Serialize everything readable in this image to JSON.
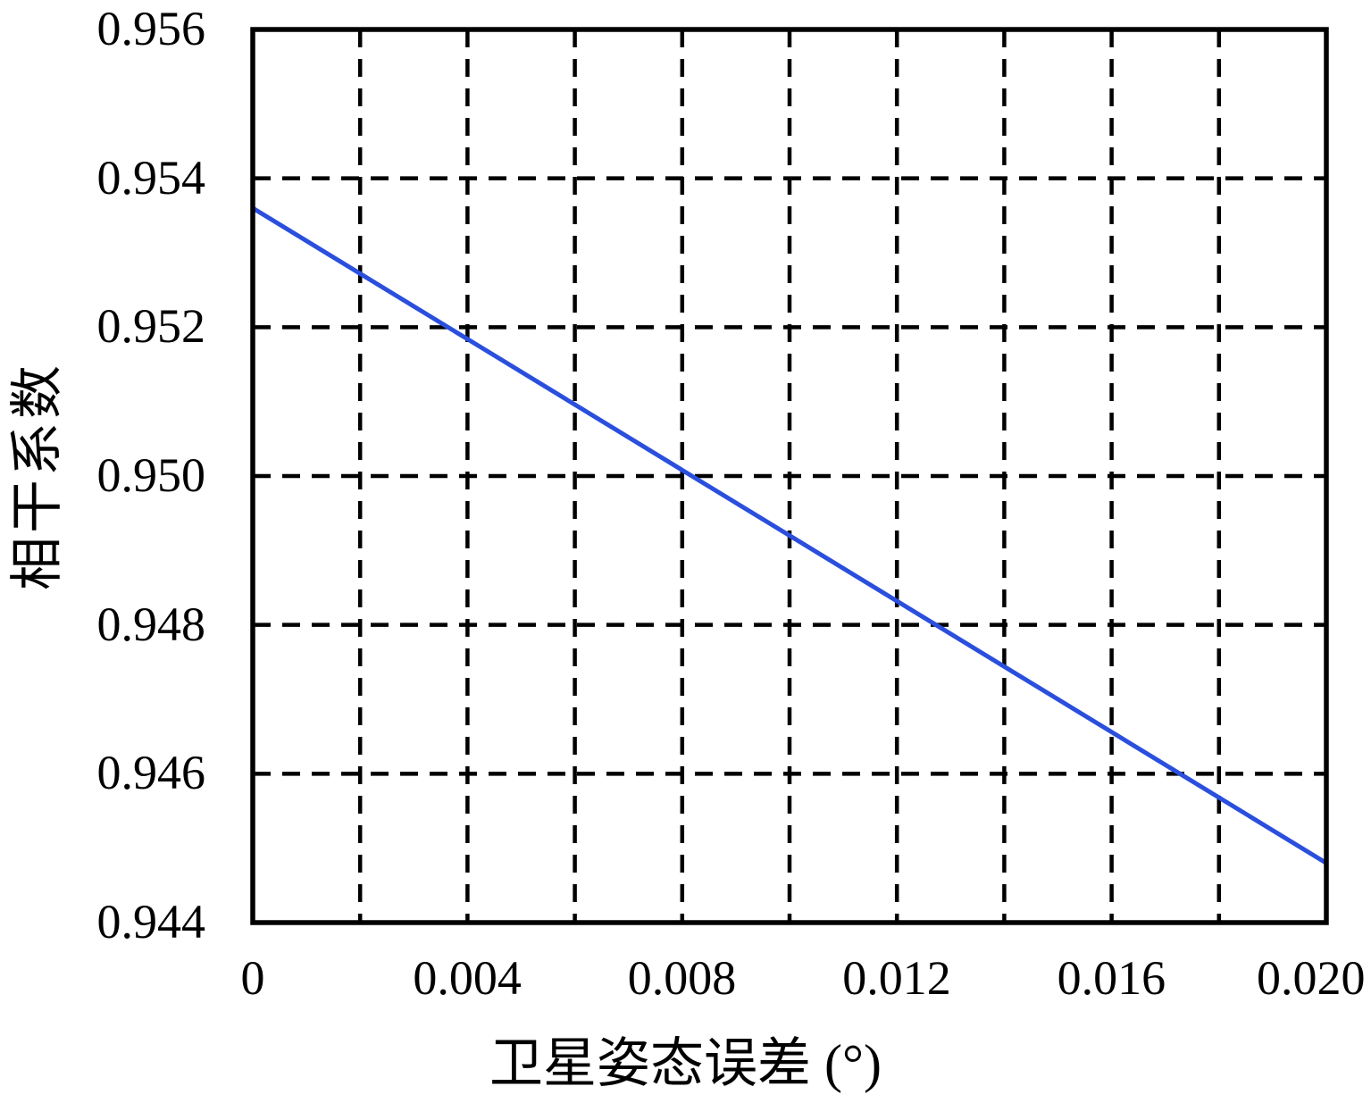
{
  "figure": {
    "background_color": "#ffffff",
    "text_color": "#000000"
  },
  "chart_data": {
    "type": "line",
    "title": "",
    "xlabel": "卫星姿态误差 (°)",
    "ylabel": "相干系数",
    "xlim": [
      0,
      0.02
    ],
    "ylim": [
      0.944,
      0.956
    ],
    "grid": "dashed",
    "grid_color": "#000000",
    "axis_color": "#000000",
    "legend": "none",
    "x_tick_values": [
      0,
      0.004,
      0.008,
      0.012,
      0.016,
      0.02
    ],
    "x_tick_labels": [
      "0",
      "0.004",
      "0.008",
      "0.012",
      "0.016",
      "0.020"
    ],
    "y_tick_values": [
      0.944,
      0.946,
      0.948,
      0.95,
      0.952,
      0.954,
      0.956
    ],
    "y_tick_labels": [
      "0.944",
      "0.946",
      "0.948",
      "0.950",
      "0.952",
      "0.954",
      "0.956"
    ],
    "x_gridline_values": [
      0.002,
      0.004,
      0.006,
      0.008,
      0.01,
      0.012,
      0.014,
      0.016,
      0.018
    ],
    "y_gridline_values": [
      0.946,
      0.948,
      0.95,
      0.952,
      0.954
    ],
    "series": [
      {
        "name": "coherence-coefficient",
        "color": "#2b4fdd",
        "x": [
          0,
          0.002,
          0.004,
          0.006,
          0.008,
          0.01,
          0.012,
          0.014,
          0.016,
          0.018,
          0.02
        ],
        "y": [
          0.9536,
          0.95272,
          0.95184,
          0.95096,
          0.95008,
          0.9492,
          0.94832,
          0.94744,
          0.94656,
          0.94568,
          0.9448
        ]
      }
    ]
  }
}
